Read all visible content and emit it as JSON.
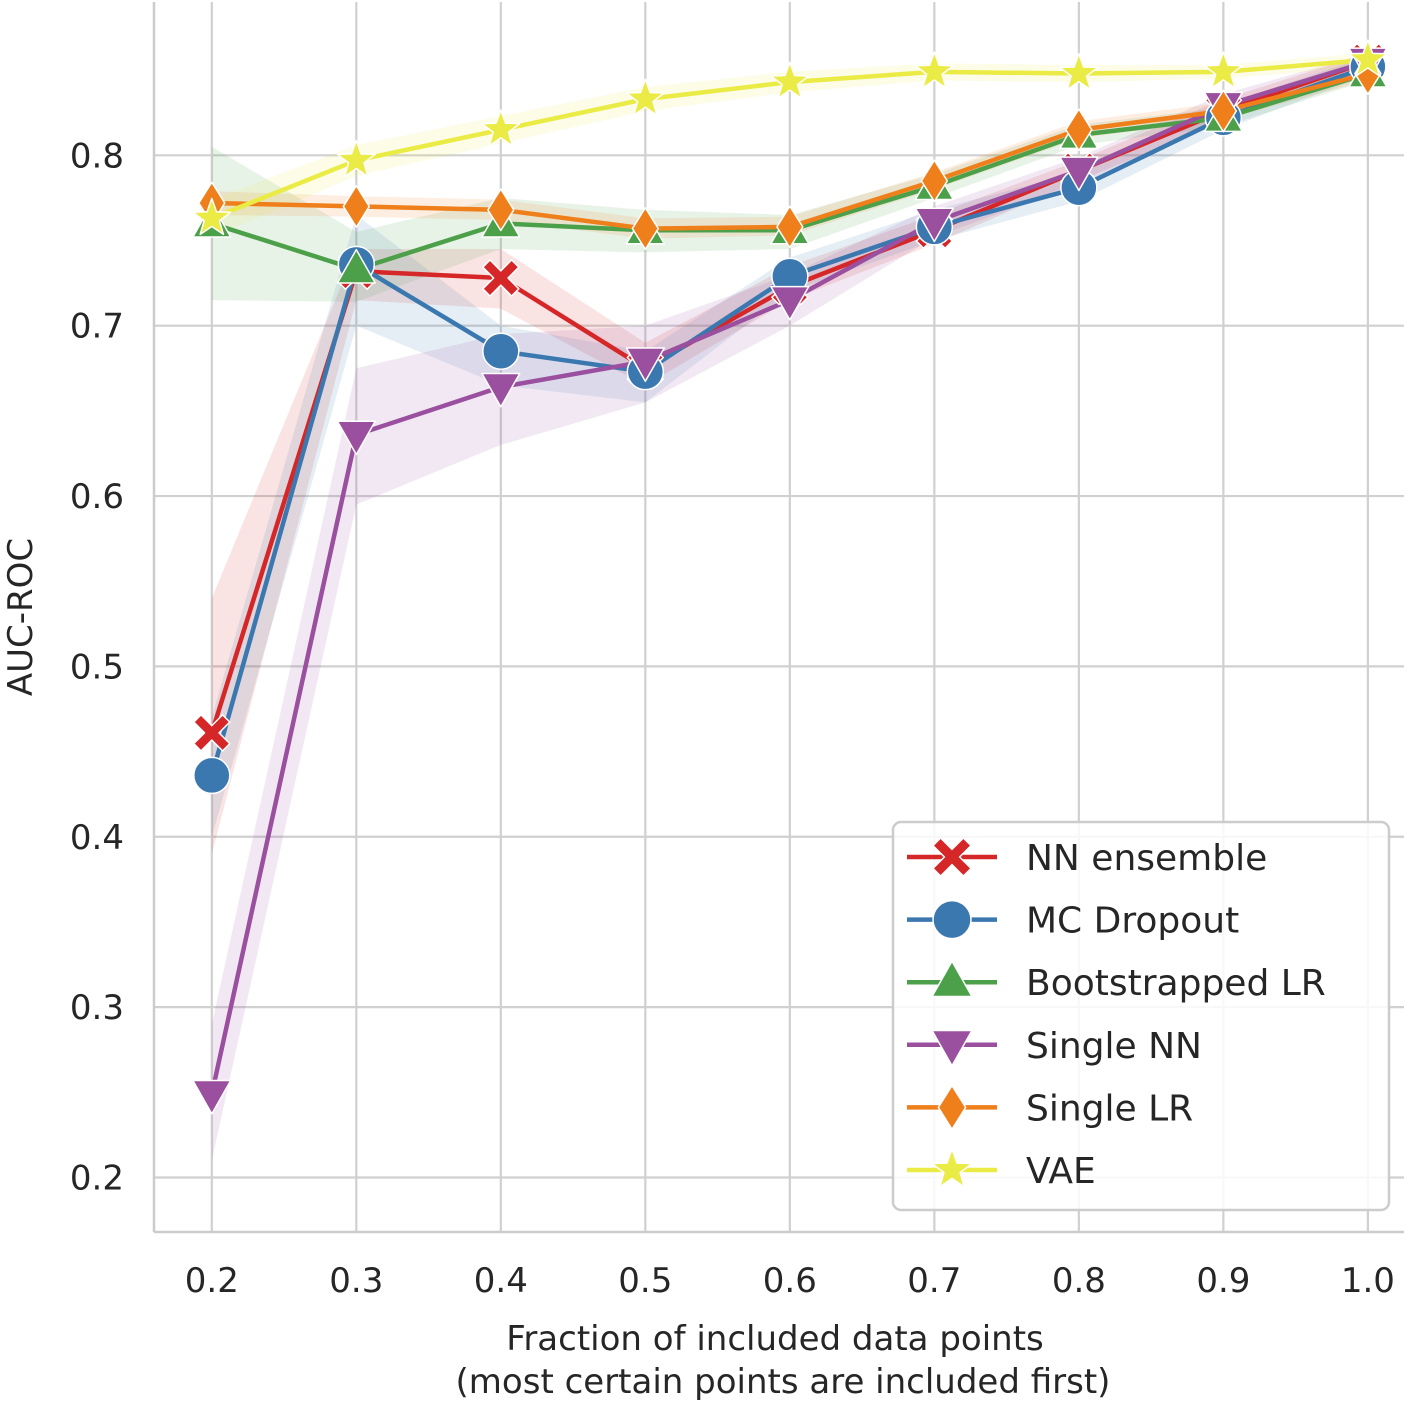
{
  "chart_data": {
    "type": "line",
    "title": "",
    "xlabel_line1": "Fraction of included data points",
    "xlabel_line2": "(most certain points are included first)",
    "ylabel": "AUC-ROC",
    "x": [
      0.2,
      0.3,
      0.4,
      0.5,
      0.6,
      0.7,
      0.8,
      0.9,
      1.0
    ],
    "x_ticks": [
      0.2,
      0.3,
      0.4,
      0.5,
      0.6,
      0.7,
      0.8,
      0.9,
      1.0
    ],
    "x_tick_labels": [
      "0.2",
      "0.3",
      "0.4",
      "0.5",
      "0.6",
      "0.7",
      "0.8",
      "0.9",
      "1.0"
    ],
    "y_ticks": [
      0.2,
      0.3,
      0.4,
      0.5,
      0.6,
      0.7,
      0.8
    ],
    "y_tick_labels": [
      "0.2",
      "0.3",
      "0.4",
      "0.5",
      "0.6",
      "0.7",
      "0.8"
    ],
    "xlim": [
      0.16,
      1.025
    ],
    "ylim": [
      0.168,
      0.89
    ],
    "grid": true,
    "legend_position": "lower-right",
    "series": [
      {
        "name": "NN ensemble",
        "marker": "X",
        "color": "#d62728",
        "values": [
          0.461,
          0.732,
          0.728,
          0.675,
          0.723,
          0.756,
          0.791,
          0.826,
          0.855
        ],
        "band_low": [
          0.39,
          0.715,
          0.71,
          0.665,
          0.715,
          0.748,
          0.785,
          0.82,
          0.85
        ],
        "band_high": [
          0.54,
          0.745,
          0.745,
          0.69,
          0.735,
          0.765,
          0.797,
          0.833,
          0.86
        ]
      },
      {
        "name": "MC Dropout",
        "marker": "o",
        "color": "#3b78b0",
        "values": [
          0.436,
          0.736,
          0.685,
          0.673,
          0.729,
          0.758,
          0.781,
          0.822,
          0.852
        ],
        "band_low": [
          0.4,
          0.7,
          0.665,
          0.655,
          0.72,
          0.75,
          0.773,
          0.815,
          0.847
        ],
        "band_high": [
          0.47,
          0.765,
          0.7,
          0.685,
          0.74,
          0.768,
          0.79,
          0.83,
          0.858
        ]
      },
      {
        "name": "Bootstrapped LR",
        "marker": "^",
        "color": "#4ca04a",
        "values": [
          0.76,
          0.733,
          0.76,
          0.756,
          0.756,
          0.782,
          0.812,
          0.822,
          0.848
        ],
        "band_low": [
          0.715,
          0.714,
          0.745,
          0.743,
          0.745,
          0.775,
          0.806,
          0.817,
          0.844
        ],
        "band_high": [
          0.805,
          0.755,
          0.775,
          0.768,
          0.765,
          0.789,
          0.818,
          0.828,
          0.852
        ]
      },
      {
        "name": "Single NN",
        "marker": "v",
        "color": "#9a4f9f",
        "values": [
          0.249,
          0.636,
          0.664,
          0.679,
          0.715,
          0.761,
          0.791,
          0.829,
          0.855
        ],
        "band_low": [
          0.21,
          0.595,
          0.63,
          0.655,
          0.7,
          0.752,
          0.783,
          0.822,
          0.85
        ],
        "band_high": [
          0.29,
          0.675,
          0.695,
          0.7,
          0.73,
          0.77,
          0.799,
          0.836,
          0.86
        ]
      },
      {
        "name": "Single LR",
        "marker": "d",
        "color": "#ef7f1b",
        "values": [
          0.772,
          0.77,
          0.768,
          0.757,
          0.758,
          0.785,
          0.815,
          0.826,
          0.848
        ],
        "band_low": [
          0.765,
          0.764,
          0.762,
          0.751,
          0.753,
          0.78,
          0.81,
          0.821,
          0.844
        ],
        "band_high": [
          0.779,
          0.776,
          0.774,
          0.763,
          0.764,
          0.79,
          0.82,
          0.831,
          0.852
        ]
      },
      {
        "name": "VAE",
        "marker": "*",
        "color": "#ebeb45",
        "values": [
          0.763,
          0.797,
          0.815,
          0.833,
          0.843,
          0.849,
          0.848,
          0.849,
          0.856
        ],
        "band_low": [
          0.752,
          0.788,
          0.807,
          0.826,
          0.837,
          0.844,
          0.843,
          0.845,
          0.852
        ],
        "band_high": [
          0.774,
          0.806,
          0.823,
          0.84,
          0.849,
          0.854,
          0.853,
          0.853,
          0.86
        ]
      }
    ]
  }
}
